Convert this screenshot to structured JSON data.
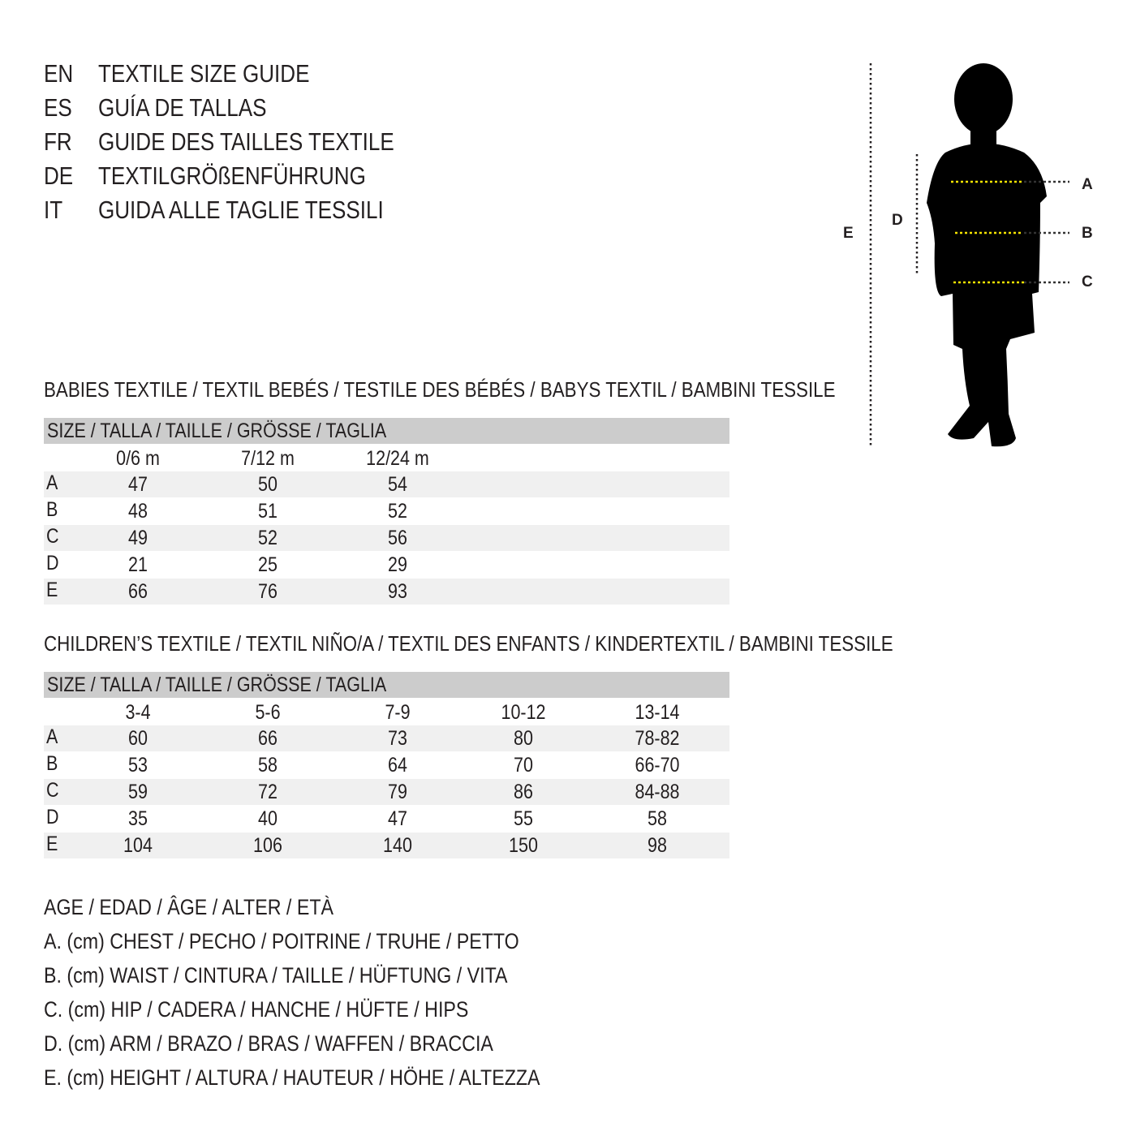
{
  "header": [
    {
      "code": "EN",
      "text": "TEXTILE SIZE GUIDE"
    },
    {
      "code": "ES",
      "text": "GUÍA DE TALLAS"
    },
    {
      "code": "FR",
      "text": "GUIDE DES TAILLES TEXTILE"
    },
    {
      "code": "DE",
      "text": "TEXTILGRÖßENFÜHRUNG"
    },
    {
      "code": "IT",
      "text": "GUIDA ALLE TAGLIE TESSILI"
    }
  ],
  "diagram": {
    "labels": {
      "A": "A",
      "B": "B",
      "C": "C",
      "D": "D",
      "E": "E"
    },
    "measure_line_color": "#f5e400"
  },
  "babies": {
    "title": "BABIES TEXTILE / TEXTIL BEBÉS / TESTILE DES BÉBÉS / BABYS TEXTIL / BAMBINI TESSILE",
    "size_header": "SIZE / TALLA / TAILLE / GRÖSSE / TAGLIA",
    "columns": [
      "0/6 m",
      "7/12 m",
      "12/24 m"
    ],
    "rows": [
      {
        "label": "A",
        "values": [
          "47",
          "50",
          "54"
        ]
      },
      {
        "label": "B",
        "values": [
          "48",
          "51",
          "52"
        ]
      },
      {
        "label": "C",
        "values": [
          "49",
          "52",
          "56"
        ]
      },
      {
        "label": "D",
        "values": [
          "21",
          "25",
          "29"
        ]
      },
      {
        "label": "E",
        "values": [
          "66",
          "76",
          "93"
        ]
      }
    ]
  },
  "children": {
    "title": "CHILDREN’S TEXTILE / TEXTIL NIÑO/A / TEXTIL DES ENFANTS / KINDERTEXTIL / BAMBINI TESSILE",
    "size_header": "SIZE / TALLA / TAILLE / GRÖSSE / TAGLIA",
    "columns": [
      "3-4",
      "5-6",
      "7-9",
      "10-12",
      "13-14"
    ],
    "rows": [
      {
        "label": "A",
        "values": [
          "60",
          "66",
          "73",
          "80",
          "78-82"
        ]
      },
      {
        "label": "B",
        "values": [
          "53",
          "58",
          "64",
          "70",
          "66-70"
        ]
      },
      {
        "label": "C",
        "values": [
          "59",
          "72",
          "79",
          "86",
          "84-88"
        ]
      },
      {
        "label": "D",
        "values": [
          "35",
          "40",
          "47",
          "55",
          "58"
        ]
      },
      {
        "label": "E",
        "values": [
          "104",
          "106",
          "140",
          "150",
          "98"
        ]
      }
    ]
  },
  "legend": [
    "AGE / EDAD / ÂGE / ALTER / ETÀ",
    "A. (cm) CHEST / PECHO / POITRINE / TRUHE / PETTO",
    "B. (cm) WAIST / CINTURA / TAILLE / HÜFTUNG / VITA",
    "C. (cm) HIP / CADERA / HANCHE / HÜFTE / HIPS",
    "D. (cm) ARM / BRAZO / BRAS / WAFFEN / BRACCIA",
    "E. (cm) HEIGHT / ALTURA / HAUTEUR / HÖHE / ALTEZZA"
  ]
}
